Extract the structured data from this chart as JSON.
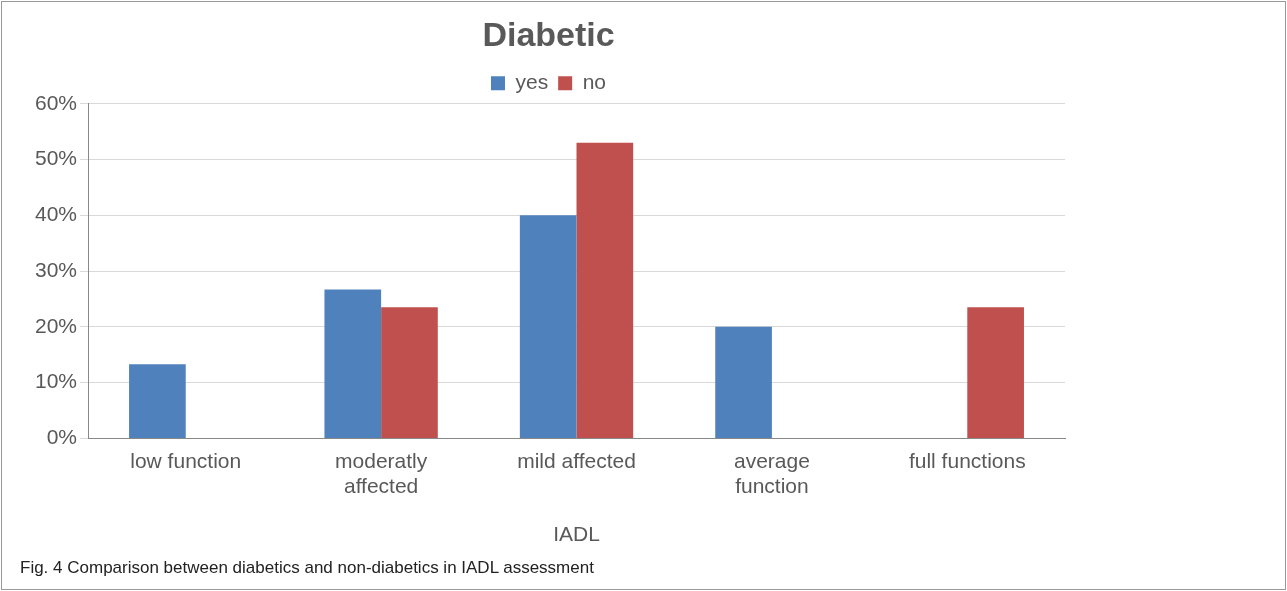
{
  "chart_data": {
    "type": "bar",
    "title": "Diabetic",
    "xlabel": "IADL",
    "categories": [
      "low function",
      "moderatly affected",
      "mild affected",
      "average function",
      "full functions"
    ],
    "series": [
      {
        "name": "yes",
        "color": "#4f81bd",
        "values": [
          13.3,
          26.7,
          40,
          20,
          0
        ]
      },
      {
        "name": "no",
        "color": "#c0504d",
        "values": [
          0,
          23.5,
          53,
          0,
          23.5
        ]
      }
    ],
    "ylim": [
      0,
      60
    ],
    "yticks": [
      {
        "value": 0,
        "label": "0%"
      },
      {
        "value": 10,
        "label": "10%"
      },
      {
        "value": 20,
        "label": "20%"
      },
      {
        "value": 30,
        "label": "30%"
      },
      {
        "value": 40,
        "label": "40%"
      },
      {
        "value": 50,
        "label": "50%"
      },
      {
        "value": 60,
        "label": "60%"
      }
    ],
    "grid": "y",
    "legend": "top",
    "annotations": [
      "Fig. 4  Comparison between diabetics and non-diabetics in IADL assessment"
    ]
  }
}
